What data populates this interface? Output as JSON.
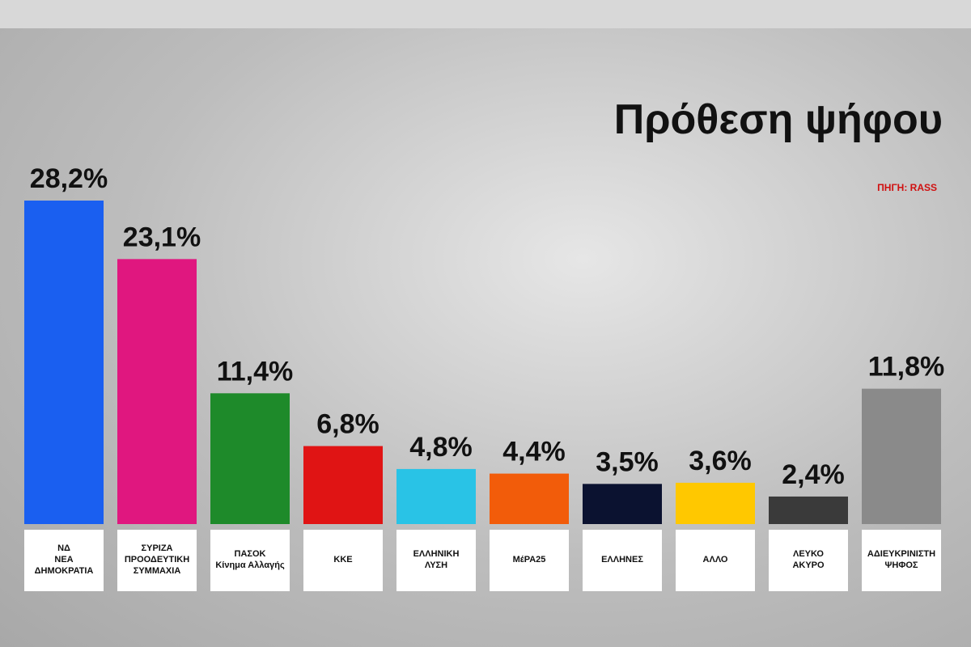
{
  "chart_data": {
    "type": "bar",
    "title": "Πρόθεση ψήφου",
    "source": "ΠΗΓΗ: RASS",
    "categories": [
      "ΝΔ\nΝΕΑ ΔΗΜΟΚΡΑΤΙΑ",
      "ΣΥΡΙΖΑ\nΠΡΟΟΔΕΥΤΙΚΗ ΣΥΜΜΑΧΙΑ",
      "ΠΑΣΟΚ\nΚίνημα Αλλαγής",
      "ΚΚΕ",
      "ΕΛΛΗΝΙΚΗ\nΛΥΣΗ",
      "ΜέΡΑ25",
      "ΕΛΛΗΝΕΣ",
      "ΑΛΛΟ",
      "ΛΕΥΚΟ\nΑΚΥΡΟ",
      "ΑΔΙΕΥΚΡΙΝΙΣΤΗ\nΨΗΦΟΣ"
    ],
    "values": [
      28.2,
      23.1,
      11.4,
      6.8,
      4.8,
      4.4,
      3.5,
      3.6,
      2.4,
      11.8
    ],
    "value_labels": [
      "28,2%",
      "23,1%",
      "11,4%",
      "6,8%",
      "4,8%",
      "4,4%",
      "3,5%",
      "3,6%",
      "2,4%",
      "11,8%"
    ],
    "colors": [
      "#1a5ff0",
      "#e0177f",
      "#1e8a2a",
      "#e01414",
      "#29c3e6",
      "#f25c0a",
      "#0b1230",
      "#ffc800",
      "#3a3a3a",
      "#8a8a8a"
    ]
  }
}
